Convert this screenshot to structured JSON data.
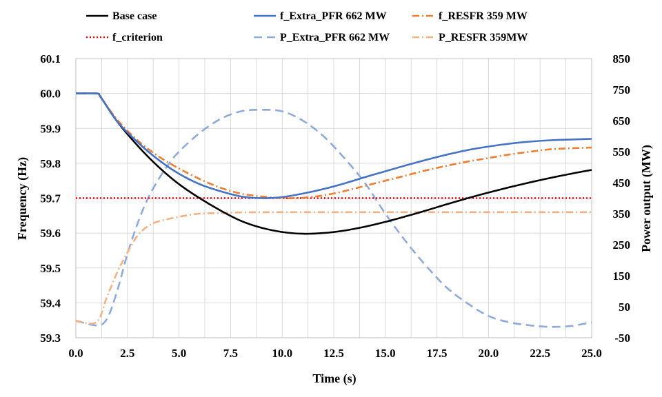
{
  "chart_data": {
    "type": "line",
    "title": "",
    "xlabel": "Time (s)",
    "ylabel_left": "Frequency (Hz)",
    "ylabel_right": "Power output (MW)",
    "xlim": [
      0,
      25
    ],
    "ylim_left": [
      59.3,
      60.1
    ],
    "ylim_right": [
      -50,
      850
    ],
    "grid": true,
    "legend": "top",
    "x_ticks": [
      "0.0",
      "2.5",
      "5.0",
      "7.5",
      "10.0",
      "12.5",
      "15.0",
      "17.5",
      "20.0",
      "22.5",
      "25.0"
    ],
    "y_left_ticks": [
      "59.3",
      "59.4",
      "59.5",
      "59.6",
      "59.7",
      "59.8",
      "59.9",
      "60.0",
      "60.1"
    ],
    "y_right_ticks": [
      "-50",
      "50",
      "150",
      "250",
      "350",
      "450",
      "550",
      "650",
      "750",
      "850"
    ],
    "series": [
      {
        "name": "Base case",
        "axis": "left",
        "color": "#000000",
        "dash": "solid",
        "x": [
          0,
          1.0,
          1.2,
          2.0,
          3.0,
          4.0,
          5.0,
          6.0,
          7.0,
          8.0,
          9.0,
          10.0,
          11.0,
          12.0,
          13.0,
          14.0,
          15.0,
          16.0,
          17.0,
          18.0,
          19.0,
          20.0,
          21.0,
          22.0,
          23.0,
          24.0,
          25.0
        ],
        "y": [
          60.0,
          60.0,
          59.99,
          59.92,
          59.85,
          59.79,
          59.74,
          59.7,
          59.665,
          59.635,
          59.615,
          59.603,
          59.598,
          59.6,
          59.607,
          59.618,
          59.632,
          59.648,
          59.665,
          59.683,
          59.7,
          59.716,
          59.731,
          59.745,
          59.758,
          59.77,
          59.781
        ]
      },
      {
        "name": "f_Extra_PFR 662 MW",
        "axis": "left",
        "color": "#4472C4",
        "dash": "solid",
        "x": [
          0,
          1.0,
          1.2,
          2.0,
          3.0,
          4.0,
          5.0,
          6.0,
          7.0,
          8.0,
          9.0,
          10.0,
          11.0,
          12.0,
          13.0,
          14.0,
          15.0,
          16.0,
          17.0,
          18.0,
          19.0,
          20.0,
          21.0,
          22.0,
          23.0,
          24.0,
          25.0
        ],
        "y": [
          60.0,
          60.0,
          59.99,
          59.92,
          59.86,
          59.81,
          59.77,
          59.74,
          59.72,
          59.705,
          59.7,
          59.703,
          59.713,
          59.726,
          59.742,
          59.76,
          59.777,
          59.794,
          59.81,
          59.825,
          59.838,
          59.848,
          59.856,
          59.862,
          59.866,
          59.868,
          59.87
        ]
      },
      {
        "name": "f_RESFR 359 MW",
        "axis": "left",
        "color": "#ED7D31",
        "dash": "dashdot",
        "x": [
          0,
          1.0,
          1.2,
          2.0,
          3.0,
          4.0,
          5.0,
          6.0,
          7.0,
          8.0,
          9.0,
          10.0,
          11.0,
          12.0,
          13.0,
          14.0,
          15.0,
          16.0,
          17.0,
          18.0,
          19.0,
          20.0,
          21.0,
          22.0,
          23.0,
          24.0,
          25.0
        ],
        "y": [
          60.0,
          60.0,
          59.99,
          59.925,
          59.865,
          59.82,
          59.785,
          59.755,
          59.73,
          59.713,
          59.705,
          59.7,
          59.701,
          59.708,
          59.72,
          59.735,
          59.75,
          59.765,
          59.78,
          59.793,
          59.805,
          59.815,
          59.825,
          59.833,
          59.84,
          59.843,
          59.845
        ]
      },
      {
        "name": "f_criterion",
        "axis": "left",
        "color": "#FF0000",
        "dash": "dotted",
        "x": [
          0,
          25
        ],
        "y": [
          59.7,
          59.7
        ]
      },
      {
        "name": "P_Extra_PFR 662 MW",
        "axis": "right",
        "color": "#8EA9DB",
        "dash": "dashed",
        "x": [
          0,
          1.0,
          1.5,
          2.0,
          2.5,
          3.0,
          3.5,
          4.0,
          4.5,
          5.0,
          6.0,
          7.0,
          8.0,
          9.0,
          10.0,
          11.0,
          12.0,
          13.0,
          14.0,
          15.0,
          16.0,
          17.0,
          18.0,
          19.0,
          20.0,
          21.0,
          22.0,
          23.0,
          24.0,
          25.0
        ],
        "y": [
          5,
          -10,
          10,
          100,
          220,
          320,
          400,
          460,
          510,
          550,
          610,
          655,
          680,
          685,
          680,
          650,
          600,
          530,
          450,
          350,
          260,
          180,
          110,
          60,
          20,
          0,
          -10,
          -15,
          -12,
          0
        ]
      },
      {
        "name": "P_RESFR 359MW",
        "axis": "right",
        "color": "#F4B183",
        "dash": "dashdot",
        "x": [
          0,
          1.0,
          1.5,
          2.0,
          2.5,
          3.0,
          3.5,
          4.0,
          5.0,
          6.0,
          7.0,
          8.0,
          10.0,
          12.5,
          15.0,
          17.5,
          20.0,
          22.5,
          25.0
        ],
        "y": [
          5,
          0,
          80,
          160,
          225,
          280,
          310,
          325,
          340,
          350,
          352,
          354,
          355,
          355,
          355,
          355,
          355,
          355,
          355
        ]
      }
    ]
  }
}
